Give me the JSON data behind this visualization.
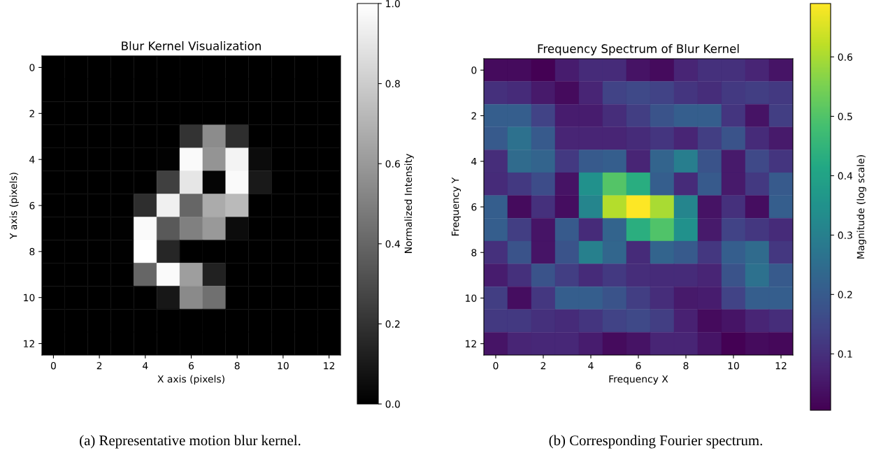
{
  "chart_data": [
    {
      "type": "heatmap",
      "title": "Blur Kernel Visualization",
      "xlabel": "X axis (pixels)",
      "ylabel": "Y axis (pixels)",
      "clabel": "Normalized Intensity",
      "colors": [
        "#000000",
        "#ffffff"
      ],
      "categories": [
        "0",
        null,
        "2",
        null,
        "4",
        null,
        "6",
        null,
        "8",
        null,
        "10",
        null,
        "12"
      ],
      "y_categories": [
        "0",
        null,
        "2",
        null,
        "4",
        null,
        "6",
        null,
        "8",
        null,
        "10",
        null,
        "12"
      ],
      "cells": [
        [
          0,
          0,
          0,
          0,
          0,
          0,
          0,
          0,
          0,
          0,
          0,
          0,
          0
        ],
        [
          0,
          0,
          0,
          0,
          0,
          0,
          0,
          0,
          0,
          0,
          0,
          0,
          0
        ],
        [
          0,
          0,
          0,
          0,
          0,
          0,
          0,
          0,
          0,
          0,
          0,
          0,
          0
        ],
        [
          0,
          0,
          0,
          0,
          0,
          0,
          0.2,
          0.55,
          0.18,
          0,
          0,
          0,
          0
        ],
        [
          0,
          0,
          0,
          0,
          0,
          0.01,
          0.98,
          0.58,
          0.95,
          0.05,
          0,
          0,
          0
        ],
        [
          0,
          0,
          0,
          0,
          0,
          0.25,
          0.9,
          0.02,
          0.98,
          0.1,
          0,
          0,
          0
        ],
        [
          0,
          0,
          0,
          0,
          0.18,
          0.94,
          0.4,
          0.67,
          0.73,
          0,
          0,
          0,
          0
        ],
        [
          0,
          0,
          0,
          0.005,
          0.98,
          0.35,
          0.5,
          0.6,
          0.05,
          0,
          0,
          0,
          0
        ],
        [
          0,
          0,
          0,
          0.005,
          1.0,
          0.15,
          0,
          0,
          0,
          0,
          0,
          0,
          0
        ],
        [
          0,
          0,
          0,
          0,
          0.4,
          0.98,
          0.62,
          0.13,
          0,
          0,
          0,
          0,
          0
        ],
        [
          0,
          0,
          0,
          0,
          0,
          0.09,
          0.54,
          0.44,
          0,
          0,
          0,
          0,
          0
        ],
        [
          0,
          0,
          0,
          0,
          0,
          0,
          0,
          0,
          0,
          0,
          0,
          0,
          0
        ],
        [
          0,
          0,
          0,
          0,
          0,
          0,
          0,
          0,
          0,
          0,
          0,
          0,
          0
        ]
      ],
      "clim": [
        0,
        1.0
      ],
      "cticks": [
        {
          "value": 0,
          "label": "0.0"
        },
        0.2,
        0.4,
        0.6,
        0.8,
        {
          "value": 1,
          "label": "1.0"
        }
      ],
      "annotations": [
        "(a) Representative motion blur kernel."
      ]
    },
    {
      "type": "heatmap",
      "title": "Frequency Spectrum of Blur Kernel",
      "xlabel": "Frequency X",
      "ylabel": "Frequency Y",
      "clabel": "Magnitude (log scale)",
      "colors": [
        "#440154",
        "#482475",
        "#414487",
        "#355f8d",
        "#2a788e",
        "#21918c",
        "#22a884",
        "#44bf70",
        "#7ad151",
        "#bddf26",
        "#fde725"
      ],
      "categories": [
        "0",
        null,
        "2",
        null,
        "4",
        null,
        "6",
        null,
        "8",
        null,
        "10",
        null,
        "12"
      ],
      "y_categories": [
        "0",
        null,
        "2",
        null,
        "4",
        null,
        "6",
        null,
        "8",
        null,
        "10",
        null,
        "12"
      ],
      "cells": [
        [
          0.025,
          0.025,
          0.005,
          0.06,
          0.09,
          0.09,
          0.04,
          0.025,
          0.075,
          0.1,
          0.1,
          0.075,
          0.045
        ],
        [
          0.1,
          0.09,
          0.055,
          0.025,
          0.075,
          0.14,
          0.155,
          0.14,
          0.11,
          0.095,
          0.12,
          0.13,
          0.12
        ],
        [
          0.21,
          0.21,
          0.14,
          0.06,
          0.06,
          0.095,
          0.13,
          0.18,
          0.21,
          0.21,
          0.11,
          0.04,
          0.13
        ],
        [
          0.2,
          0.26,
          0.2,
          0.075,
          0.075,
          0.075,
          0.09,
          0.11,
          0.075,
          0.13,
          0.18,
          0.09,
          0.055
        ],
        [
          0.095,
          0.245,
          0.225,
          0.12,
          0.2,
          0.21,
          0.075,
          0.225,
          0.295,
          0.18,
          0.055,
          0.155,
          0.11
        ],
        [
          0.09,
          0.12,
          0.165,
          0.04,
          0.35,
          0.505,
          0.43,
          0.21,
          0.09,
          0.2,
          0.055,
          0.12,
          0.2
        ],
        [
          0.21,
          0.025,
          0.1,
          0.03,
          0.315,
          0.61,
          0.69,
          0.6,
          0.315,
          0.04,
          0.1,
          0.03,
          0.21
        ],
        [
          0.21,
          0.13,
          0.045,
          0.2,
          0.09,
          0.225,
          0.435,
          0.5,
          0.35,
          0.055,
          0.14,
          0.115,
          0.09
        ],
        [
          0.1,
          0.18,
          0.045,
          0.18,
          0.3,
          0.23,
          0.09,
          0.225,
          0.2,
          0.115,
          0.21,
          0.245,
          0.115
        ],
        [
          0.06,
          0.1,
          0.18,
          0.13,
          0.09,
          0.12,
          0.095,
          0.09,
          0.09,
          0.075,
          0.18,
          0.26,
          0.2
        ],
        [
          0.13,
          0.03,
          0.115,
          0.21,
          0.21,
          0.18,
          0.13,
          0.095,
          0.055,
          0.06,
          0.14,
          0.21,
          0.21
        ],
        [
          0.12,
          0.12,
          0.1,
          0.09,
          0.11,
          0.14,
          0.155,
          0.13,
          0.068,
          0.025,
          0.045,
          0.075,
          0.095
        ],
        [
          0.045,
          0.075,
          0.08,
          0.08,
          0.06,
          0.025,
          0.04,
          0.075,
          0.075,
          0.045,
          0.005,
          0.025,
          0.02
        ]
      ],
      "clim": [
        0.005,
        0.69
      ],
      "cticks": [
        0.1,
        0.2,
        0.3,
        0.4,
        0.5,
        0.6
      ],
      "annotations": [
        "(b) Corresponding Fourier spectrum."
      ]
    }
  ]
}
